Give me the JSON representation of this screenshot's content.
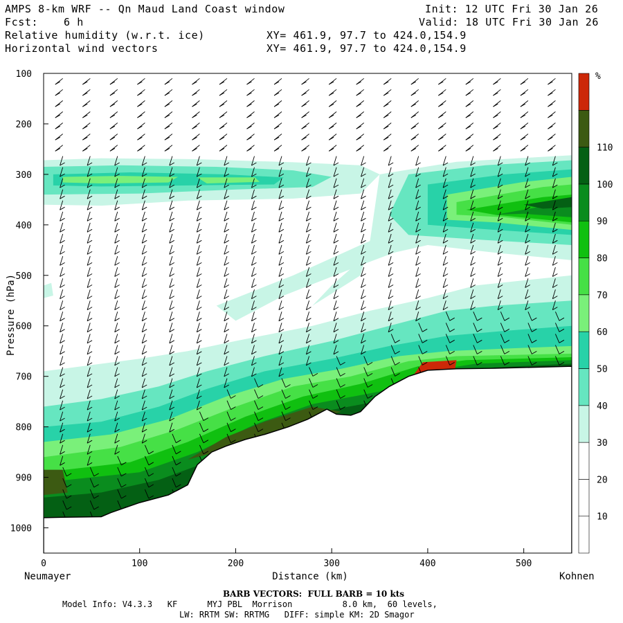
{
  "header": {
    "title": "AMPS 8-km WRF -- Qn Maud Land Coast window",
    "fcst_label": "Fcst:",
    "fcst_value": "6 h",
    "init": "Init: 12 UTC Fri 30 Jan 26",
    "valid": "Valid: 18 UTC Fri 30 Jan 26",
    "field1": "Relative humidity (w.r.t. ice)",
    "field2": "Horizontal wind vectors",
    "xy1": "XY= 461.9, 97.7 to 424.0,154.9",
    "xy2": "XY= 461.9, 97.7 to 424.0,154.9"
  },
  "footer": {
    "barb": "BARB VECTORS:  FULL BARB = 10 kts",
    "line1": "Model Info: V4.3.3   KF      MYJ PBL  Morrison          8.0 km,  60 levels,",
    "line2": "LW: RRTM SW: RRTMG   DIFF: simple KM: 2D Smagor"
  },
  "chart_data": {
    "type": "cross-section",
    "title": "Relative humidity (w.r.t. ice) and horizontal wind vectors",
    "xlabel": "Distance (km)",
    "ylabel": "Pressure (hPa)",
    "xlim": [
      0,
      550
    ],
    "ylim": [
      1050,
      100
    ],
    "x_ticks": [
      0,
      100,
      200,
      300,
      400,
      500
    ],
    "y_ticks": [
      100,
      200,
      300,
      400,
      500,
      600,
      700,
      800,
      900,
      1000
    ],
    "left_endpoint": "Neumayer",
    "right_endpoint": "Kohnen",
    "colorbar": {
      "unit": "%",
      "levels": [
        10,
        20,
        30,
        40,
        50,
        60,
        70,
        80,
        90,
        100,
        110
      ],
      "colors": [
        "#ffffff",
        "#ffffff",
        "#ffffff",
        "#c8f5e6",
        "#66e6c0",
        "#28d2a8",
        "#7af07a",
        "#46e046",
        "#10c010",
        "#0a8c1e",
        "#046014",
        "#3c5a12",
        "#cc2808"
      ]
    },
    "terrain_surface_pressure": {
      "distance_km": [
        0,
        20,
        60,
        70,
        100,
        130,
        150,
        160,
        175,
        190,
        210,
        230,
        255,
        275,
        295,
        305,
        320,
        330,
        345,
        360,
        380,
        400,
        430,
        470,
        510,
        550
      ],
      "pressure_hPa": [
        980,
        979,
        978,
        970,
        950,
        935,
        915,
        875,
        850,
        838,
        825,
        815,
        800,
        785,
        765,
        775,
        777,
        770,
        740,
        720,
        700,
        688,
        685,
        684,
        682,
        680
      ]
    },
    "rh_layers": [
      {
        "name": "upper moist layer west",
        "distance_km": [
          0,
          280
        ],
        "pressure_hPa": [
          275,
          345
        ],
        "max_rh_pct": 80
      },
      {
        "name": "upper moist layer east",
        "distance_km": [
          380,
          550
        ],
        "pressure_hPa": [
          290,
          420
        ],
        "max_rh_pct": 100
      },
      {
        "name": "low-level moist layer",
        "distance_km": [
          0,
          550
        ],
        "pressure_hPa": [
          640,
          980
        ],
        "max_rh_pct": 110
      },
      {
        "name": "saturated pocket",
        "distance_km": [
          385,
          430
        ],
        "pressure_hPa": [
          670,
          700
        ],
        "max_rh_pct": 110
      }
    ],
    "annotation": "BARB VECTORS:  FULL BARB = 10 kts"
  }
}
